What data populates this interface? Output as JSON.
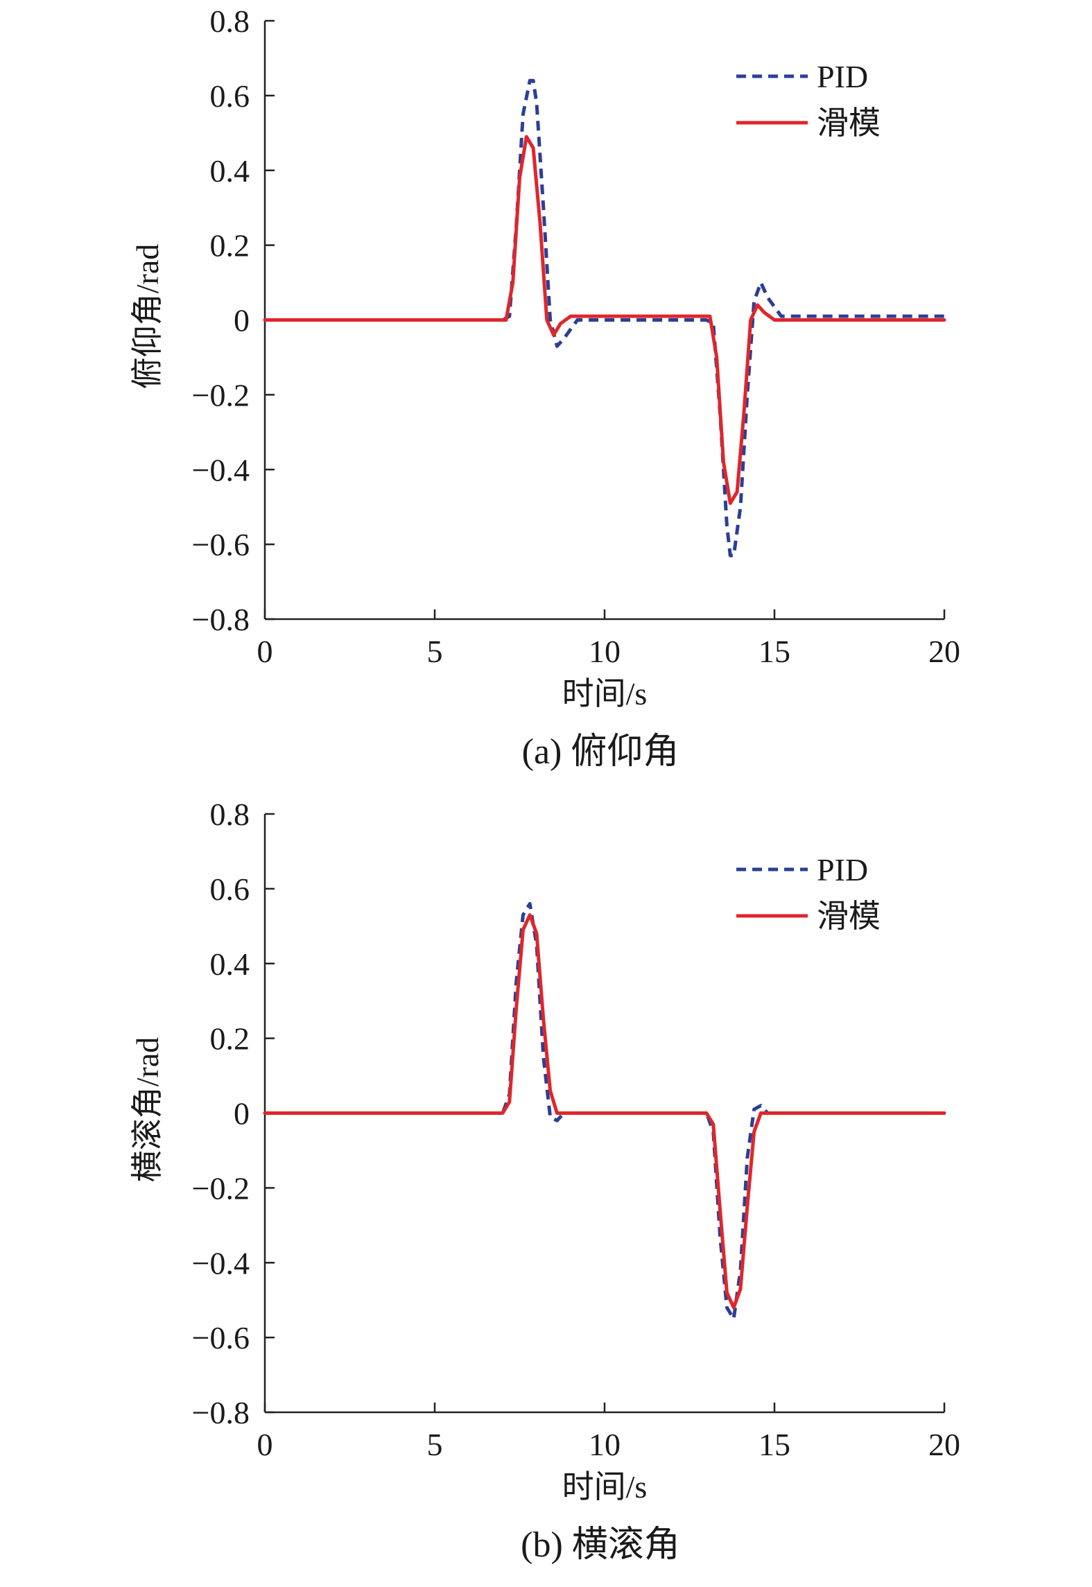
{
  "chart_data": [
    {
      "type": "line",
      "caption": "(a) 俯仰角",
      "xlabel": "时间/s",
      "ylabel": "俯仰角/rad",
      "xlim": [
        0,
        20
      ],
      "ylim": [
        -0.8,
        0.8
      ],
      "xticks": [
        "0",
        "5",
        "10",
        "15",
        "20"
      ],
      "yticks": [
        "0.8",
        "0.6",
        "0.4",
        "0.2",
        "0",
        "−0.2",
        "−0.4",
        "−0.6",
        "−0.8"
      ],
      "grid": false,
      "legend_position": "top-right",
      "series": [
        {
          "name": "PID",
          "color": "#2b3f96",
          "style": "dashed",
          "x": [
            0,
            7.0,
            7.2,
            7.4,
            7.6,
            7.8,
            7.9,
            8.0,
            8.2,
            8.4,
            8.6,
            8.8,
            9.2,
            10.0,
            12.0,
            13.0,
            13.2,
            13.4,
            13.6,
            13.7,
            13.8,
            14.0,
            14.2,
            14.4,
            14.6,
            14.8,
            15.2,
            16.0,
            20
          ],
          "y": [
            0,
            0,
            0.01,
            0.25,
            0.55,
            0.64,
            0.64,
            0.58,
            0.3,
            0.0,
            -0.07,
            -0.05,
            0.0,
            0.0,
            0.0,
            0.0,
            -0.01,
            -0.25,
            -0.55,
            -0.63,
            -0.63,
            -0.5,
            -0.2,
            0.05,
            0.1,
            0.06,
            0.01,
            0.01,
            0.01
          ]
        },
        {
          "name": "滑模",
          "color": "#e0262b",
          "style": "solid",
          "x": [
            0,
            7.1,
            7.3,
            7.5,
            7.7,
            7.9,
            8.1,
            8.3,
            8.5,
            8.7,
            9.0,
            10.0,
            12.0,
            13.1,
            13.3,
            13.5,
            13.7,
            13.9,
            14.1,
            14.3,
            14.5,
            14.7,
            15.0,
            16.0,
            20
          ],
          "y": [
            0,
            0,
            0.1,
            0.38,
            0.49,
            0.46,
            0.26,
            0.0,
            -0.04,
            -0.01,
            0.01,
            0.01,
            0.01,
            0.01,
            -0.1,
            -0.38,
            -0.49,
            -0.46,
            -0.25,
            0.0,
            0.04,
            0.02,
            0.0,
            0.0,
            0.0
          ]
        }
      ]
    },
    {
      "type": "line",
      "caption": "(b) 横滚角",
      "xlabel": "时间/s",
      "ylabel": "横滚角/rad",
      "xlim": [
        0,
        20
      ],
      "ylim": [
        -0.8,
        0.8
      ],
      "xticks": [
        "0",
        "5",
        "10",
        "15",
        "20"
      ],
      "yticks": [
        "0.8",
        "0.6",
        "0.4",
        "0.2",
        "0",
        "−0.2",
        "−0.4",
        "−0.6",
        "−0.8"
      ],
      "grid": false,
      "legend_position": "top-right",
      "series": [
        {
          "name": "PID",
          "color": "#2b3f96",
          "style": "dashed",
          "x": [
            0,
            7.0,
            7.2,
            7.4,
            7.6,
            7.8,
            8.0,
            8.2,
            8.4,
            8.6,
            8.8,
            9.2,
            10.0,
            13.0,
            13.2,
            13.4,
            13.6,
            13.8,
            14.0,
            14.2,
            14.4,
            14.6,
            14.8,
            15.2,
            20
          ],
          "y": [
            0,
            0,
            0.05,
            0.35,
            0.53,
            0.56,
            0.45,
            0.15,
            -0.01,
            -0.02,
            0.0,
            0.0,
            0.0,
            0.0,
            -0.05,
            -0.33,
            -0.52,
            -0.55,
            -0.42,
            -0.12,
            0.01,
            0.02,
            0.0,
            0.0,
            0.0
          ]
        },
        {
          "name": "滑模",
          "color": "#e0262b",
          "style": "solid",
          "x": [
            0,
            7.0,
            7.2,
            7.4,
            7.6,
            7.8,
            8.0,
            8.2,
            8.4,
            8.6,
            8.8,
            9.2,
            10.0,
            13.0,
            13.2,
            13.4,
            13.6,
            13.8,
            14.0,
            14.2,
            14.4,
            14.6,
            15.0,
            20
          ],
          "y": [
            0,
            0,
            0.03,
            0.28,
            0.49,
            0.53,
            0.48,
            0.25,
            0.06,
            0.0,
            0.0,
            0.0,
            0.0,
            0.0,
            -0.03,
            -0.26,
            -0.48,
            -0.52,
            -0.47,
            -0.25,
            -0.05,
            0.0,
            0.0,
            0.0
          ]
        }
      ]
    }
  ]
}
